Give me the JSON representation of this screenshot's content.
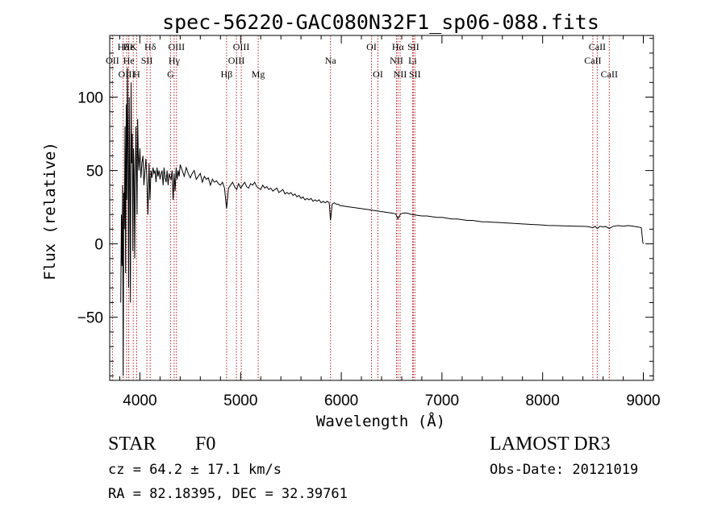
{
  "chart_data": {
    "type": "line",
    "title": "spec-56220-GAC080N32F1_sp06-088.fits",
    "xlabel": "Wavelength (Å)",
    "ylabel": "Flux (relative)",
    "xlim": [
      3700,
      9100
    ],
    "ylim": [
      -93,
      142
    ],
    "xticks": [
      4000,
      5000,
      6000,
      7000,
      8000,
      9000
    ],
    "yticks": [
      -50,
      0,
      50,
      100
    ],
    "xtick_labels": [
      "4000",
      "5000",
      "6000",
      "7000",
      "8000",
      "9000"
    ],
    "ytick_labels": [
      "−50",
      "0",
      "50",
      "100"
    ],
    "series": [
      {
        "name": "flux",
        "x": [
          3810,
          3816,
          3822,
          3828,
          3834,
          3840,
          3846,
          3852,
          3858,
          3864,
          3870,
          3876,
          3882,
          3888,
          3894,
          3900,
          3906,
          3912,
          3918,
          3924,
          3930,
          3936,
          3942,
          3948,
          3954,
          3960,
          3966,
          3972,
          3978,
          3984,
          3990,
          4000,
          4010,
          4020,
          4030,
          4040,
          4050,
          4060,
          4070,
          4080,
          4090,
          4100,
          4110,
          4120,
          4130,
          4140,
          4150,
          4160,
          4170,
          4180,
          4190,
          4200,
          4210,
          4220,
          4230,
          4240,
          4250,
          4260,
          4270,
          4280,
          4290,
          4300,
          4310,
          4320,
          4330,
          4340,
          4350,
          4360,
          4370,
          4380,
          4390,
          4400,
          4420,
          4440,
          4460,
          4480,
          4500,
          4520,
          4540,
          4560,
          4580,
          4600,
          4620,
          4640,
          4660,
          4680,
          4700,
          4720,
          4740,
          4760,
          4780,
          4800,
          4820,
          4840,
          4861,
          4880,
          4900,
          4920,
          4940,
          4960,
          4980,
          5000,
          5020,
          5040,
          5060,
          5080,
          5100,
          5120,
          5140,
          5160,
          5180,
          5200,
          5220,
          5240,
          5260,
          5280,
          5300,
          5320,
          5340,
          5360,
          5380,
          5400,
          5420,
          5440,
          5460,
          5480,
          5500,
          5520,
          5540,
          5560,
          5580,
          5600,
          5620,
          5640,
          5660,
          5680,
          5700,
          5720,
          5740,
          5760,
          5780,
          5800,
          5820,
          5840,
          5860,
          5880,
          5893,
          5910,
          5930,
          5950,
          5970,
          5990,
          6000,
          6050,
          6100,
          6150,
          6200,
          6250,
          6300,
          6350,
          6400,
          6450,
          6500,
          6540,
          6563,
          6590,
          6620,
          6650,
          6700,
          6750,
          6800,
          6850,
          6900,
          6950,
          7000,
          7050,
          7100,
          7150,
          7200,
          7250,
          7300,
          7350,
          7400,
          7450,
          7500,
          7550,
          7600,
          7650,
          7700,
          7750,
          7800,
          7850,
          7900,
          7950,
          8000,
          8050,
          8100,
          8150,
          8200,
          8250,
          8300,
          8350,
          8400,
          8450,
          8498,
          8520,
          8542,
          8570,
          8600,
          8620,
          8662,
          8700,
          8750,
          8800,
          8850,
          8900,
          8950,
          8980,
          8995,
          9000
        ],
        "y": [
          -40,
          20,
          -15,
          40,
          -90,
          35,
          10,
          80,
          -20,
          95,
          30,
          120,
          60,
          -30,
          100,
          45,
          -40,
          110,
          55,
          75,
          -5,
          65,
          50,
          -10,
          40,
          80,
          50,
          20,
          85,
          60,
          50,
          65,
          45,
          55,
          60,
          40,
          50,
          58,
          42,
          20,
          55,
          30,
          50,
          45,
          52,
          48,
          50,
          42,
          52,
          46,
          50,
          44,
          48,
          50,
          40,
          52,
          45,
          42,
          50,
          40,
          48,
          45,
          44,
          50,
          30,
          48,
          36,
          52,
          44,
          50,
          46,
          54,
          50,
          46,
          52,
          48,
          45,
          48,
          50,
          44,
          46,
          48,
          42,
          46,
          44,
          45,
          40,
          44,
          42,
          43,
          41,
          40,
          42,
          38,
          24,
          38,
          40,
          42,
          39,
          37,
          41,
          38,
          40,
          42,
          39,
          38,
          41,
          40,
          42,
          39,
          38,
          37,
          40,
          38,
          39,
          37,
          38,
          36,
          37,
          38,
          35,
          36,
          37,
          34,
          35,
          34,
          35,
          33,
          34,
          32,
          33,
          31,
          32,
          30,
          31,
          30,
          31,
          29,
          30,
          29,
          30,
          28,
          29,
          28,
          29,
          28,
          16,
          27,
          28,
          27,
          27,
          26,
          26,
          25.5,
          25,
          24.5,
          24,
          23.5,
          23,
          22.5,
          22,
          21.5,
          21,
          20.5,
          17,
          20.5,
          21,
          21,
          20,
          19.5,
          19,
          19,
          18.5,
          18,
          18,
          17.5,
          17,
          17,
          16.5,
          16,
          16,
          15.5,
          15,
          15,
          14.8,
          14.6,
          14.4,
          14.2,
          14,
          13.8,
          13.6,
          13.4,
          13.2,
          13,
          12.8,
          12.6,
          12.5,
          12.4,
          12.3,
          12.2,
          12.1,
          12,
          11.9,
          11.8,
          11,
          12,
          10.5,
          12,
          11.5,
          12,
          10.5,
          12,
          12.5,
          12,
          12.5,
          12,
          11.5,
          11,
          1,
          0
        ]
      }
    ],
    "lines": [
      {
        "label": "Hδ",
        "x": 3835,
        "row": 0
      },
      {
        "label": "He",
        "x": 3889,
        "row": 0
      },
      {
        "label": "K",
        "x": 3934,
        "row": 0
      },
      {
        "label": "Hδ",
        "x": 4102,
        "row": 0
      },
      {
        "label": "OIII",
        "x": 4363,
        "row": 0
      },
      {
        "label": "OIII",
        "x": 5007,
        "row": 0
      },
      {
        "label": "OI",
        "x": 6300,
        "row": 0
      },
      {
        "label": "Hα",
        "x": 6563,
        "row": 0
      },
      {
        "label": "SII",
        "x": 6716,
        "row": 0
      },
      {
        "label": "CaII",
        "x": 8542,
        "row": 0
      },
      {
        "label": "OII",
        "x": 3727,
        "row": 1
      },
      {
        "label": "He",
        "x": 3889,
        "row": 1
      },
      {
        "label": "SII",
        "x": 4069,
        "row": 1
      },
      {
        "label": "Hγ",
        "x": 4340,
        "row": 1
      },
      {
        "label": "OIII",
        "x": 4959,
        "row": 1
      },
      {
        "label": "Na",
        "x": 5893,
        "row": 1
      },
      {
        "label": "NII",
        "x": 6548,
        "row": 1
      },
      {
        "label": "Li",
        "x": 6708,
        "row": 1
      },
      {
        "label": "CaII",
        "x": 8498,
        "row": 1
      },
      {
        "label": "OIII",
        "x": 3868,
        "row": 2
      },
      {
        "label": "H",
        "x": 3968,
        "row": 2
      },
      {
        "label": "G",
        "x": 4304,
        "row": 2
      },
      {
        "label": "Hβ",
        "x": 4861,
        "row": 2
      },
      {
        "label": "Mg",
        "x": 5175,
        "row": 2
      },
      {
        "label": "OI",
        "x": 6364,
        "row": 2
      },
      {
        "label": "NII",
        "x": 6584,
        "row": 2
      },
      {
        "label": "SII",
        "x": 6731,
        "row": 2
      },
      {
        "label": "CaII",
        "x": 8662,
        "row": 2
      }
    ]
  },
  "info": {
    "class_label": "STAR",
    "subclass": "F0",
    "cz": "cz = 64.2 ± 17.1 km/s",
    "coords": "RA =  82.18395, DEC =  32.39761",
    "survey": "LAMOST DR3",
    "obs_date": "Obs-Date: 20121019"
  },
  "colors": {
    "spectrum": "#000000",
    "line_marker": "#b22222",
    "axes": "#000000"
  }
}
